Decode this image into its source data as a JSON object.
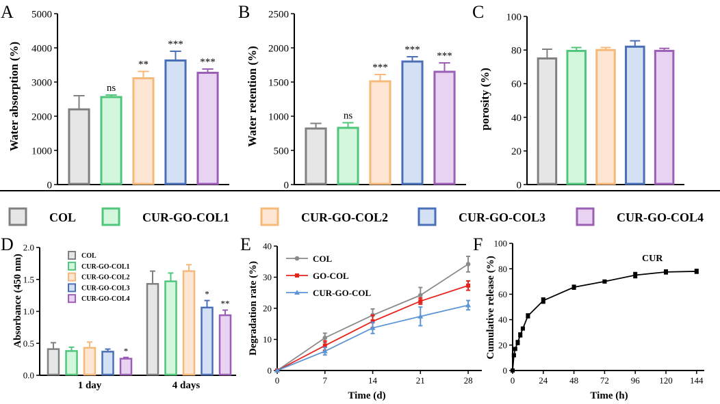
{
  "colors": {
    "COL": {
      "edge": "#808080",
      "fill": "#e6e6e6"
    },
    "CUR-GO-COL1": {
      "edge": "#4fc67b",
      "fill": "#d3f7dd"
    },
    "CUR-GO-COL2": {
      "edge": "#f6b97a",
      "fill": "#fde6d3"
    },
    "CUR-GO-COL3": {
      "edge": "#4a6fb9",
      "fill": "#d4e0f4"
    },
    "CUR-GO-COL4": {
      "edge": "#9b5fb5",
      "fill": "#e8d3f2"
    },
    "line_COL": "#8a8a8a",
    "line_GO-COL": "#e8231c",
    "line_CUR-GO-COL": "#5b95d4",
    "axis": "#000000"
  },
  "legend": {
    "items": [
      "COL",
      "CUR-GO-COL1",
      "CUR-GO-COL2",
      "CUR-GO-COL3",
      "CUR-GO-COL4"
    ]
  },
  "chart_data": [
    {
      "panel": "A",
      "type": "bar",
      "categories": [
        "COL",
        "CUR-GO-COL1",
        "CUR-GO-COL2",
        "CUR-GO-COL3",
        "CUR-GO-COL4"
      ],
      "values": [
        2200,
        2560,
        3110,
        3630,
        3270
      ],
      "errors": [
        400,
        60,
        200,
        270,
        110
      ],
      "annotations": [
        "",
        "ns",
        "**",
        "***",
        "***"
      ],
      "ylabel": "Water absorption (%)",
      "ylim": [
        0,
        5000
      ],
      "yticks": [
        "0",
        "1000",
        "2000",
        "3000",
        "4000",
        "5000"
      ]
    },
    {
      "panel": "B",
      "type": "bar",
      "categories": [
        "COL",
        "CUR-GO-COL1",
        "CUR-GO-COL2",
        "CUR-GO-COL3",
        "CUR-GO-COL4"
      ],
      "values": [
        820,
        830,
        1510,
        1800,
        1650
      ],
      "errors": [
        75,
        75,
        100,
        70,
        130
      ],
      "annotations": [
        "",
        "ns",
        "***",
        "***",
        "***"
      ],
      "ylabel": "Water retention (%)",
      "ylim": [
        0,
        2500
      ],
      "yticks": [
        "0",
        "500",
        "1000",
        "1500",
        "2000",
        "2500"
      ]
    },
    {
      "panel": "C",
      "type": "bar",
      "categories": [
        "COL",
        "CUR-GO-COL1",
        "CUR-GO-COL2",
        "CUR-GO-COL3",
        "CUR-GO-COL4"
      ],
      "values": [
        75,
        79.5,
        80,
        82,
        79.5
      ],
      "errors": [
        5.5,
        2,
        1.5,
        3.5,
        1.5
      ],
      "annotations": [
        "",
        "",
        "",
        "",
        ""
      ],
      "ylabel": "porosity (%)",
      "ylim": [
        0,
        100
      ],
      "yticks": [
        "0",
        "20",
        "40",
        "60",
        "80",
        "100"
      ]
    },
    {
      "panel": "D",
      "type": "bar",
      "groups": [
        "1 day",
        "4 days"
      ],
      "series": [
        {
          "name": "COL",
          "values": [
            0.41,
            1.43
          ],
          "errors": [
            0.1,
            0.2
          ],
          "annotations": [
            "",
            ""
          ]
        },
        {
          "name": "CUR-GO-COL1",
          "values": [
            0.38,
            1.47
          ],
          "errors": [
            0.06,
            0.13
          ],
          "annotations": [
            "",
            ""
          ]
        },
        {
          "name": "CUR-GO-COL2",
          "values": [
            0.43,
            1.63
          ],
          "errors": [
            0.09,
            0.1
          ],
          "annotations": [
            "",
            ""
          ]
        },
        {
          "name": "CUR-GO-COL3",
          "values": [
            0.37,
            1.06
          ],
          "errors": [
            0.04,
            0.11
          ],
          "annotations": [
            "",
            "*"
          ]
        },
        {
          "name": "CUR-GO-COL4",
          "values": [
            0.26,
            0.94
          ],
          "errors": [
            0.02,
            0.08
          ],
          "annotations": [
            "*",
            "**"
          ]
        }
      ],
      "ylabel": "Absorbance (450 nm)",
      "ylim": [
        0,
        2.0
      ],
      "yticks": [
        "0.0",
        "0.5",
        "1.0",
        "1.5",
        "2.0"
      ]
    },
    {
      "panel": "E",
      "type": "line",
      "x": [
        0,
        7,
        14,
        21,
        28
      ],
      "series": [
        {
          "name": "COL",
          "values": [
            0,
            10.5,
            17.8,
            24.2,
            34.2
          ],
          "errors": [
            0,
            1.5,
            2,
            2.5,
            2.5
          ],
          "marker": "circle"
        },
        {
          "name": "GO-COL",
          "values": [
            0,
            8,
            15.8,
            22.3,
            27.3
          ],
          "errors": [
            0,
            1.5,
            2,
            1,
            1.5
          ],
          "marker": "square"
        },
        {
          "name": "CUR-GO-COL",
          "values": [
            0,
            6.2,
            13.7,
            17.4,
            21
          ],
          "errors": [
            0,
            1.2,
            1.8,
            3,
            1.5
          ],
          "marker": "triangle"
        }
      ],
      "xlabel": "Time (d)",
      "ylabel": "Degradation rate (%)",
      "xlim": [
        0,
        30
      ],
      "ylim": [
        0,
        40
      ],
      "xticks": [
        "0",
        "7",
        "14",
        "21",
        "28"
      ],
      "yticks": [
        "0",
        "10",
        "20",
        "30",
        "40"
      ]
    },
    {
      "panel": "F",
      "type": "line",
      "x": [
        0,
        1,
        2,
        4,
        6,
        8,
        12,
        24,
        48,
        72,
        96,
        120,
        144
      ],
      "series": [
        {
          "name": "CUR",
          "values": [
            0,
            12,
            17,
            22,
            28,
            33,
            43,
            55,
            65.5,
            70,
            75,
            77.5,
            78
          ],
          "errors": [
            0,
            1,
            1,
            1.5,
            1.5,
            1,
            1.5,
            2,
            1.5,
            1,
            2,
            1.5,
            1.5
          ],
          "marker": "square"
        }
      ],
      "label": "CUR",
      "xlabel": "Time (h)",
      "ylabel": "Cumulative release (%)",
      "xlim": [
        0,
        150
      ],
      "ylim": [
        0,
        100
      ],
      "xticks": [
        "0",
        "24",
        "48",
        "72",
        "96",
        "120",
        "144"
      ],
      "yticks": [
        "0",
        "20",
        "40",
        "60",
        "80",
        "100"
      ]
    }
  ]
}
